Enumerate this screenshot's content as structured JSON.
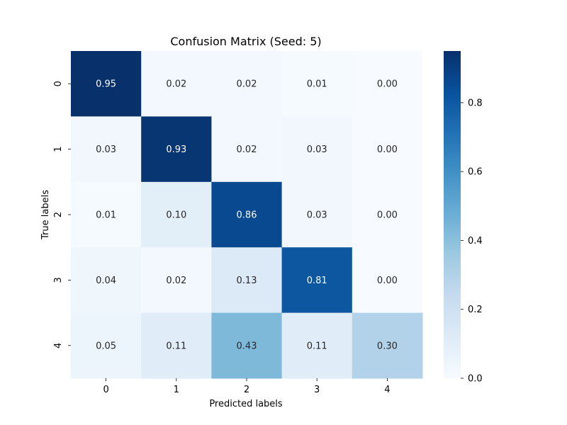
{
  "chart_data": {
    "type": "heatmap",
    "title": "Confusion Matrix (Seed: 5)",
    "xlabel": "Predicted labels",
    "ylabel": "True labels",
    "x_categories": [
      "0",
      "1",
      "2",
      "3",
      "4"
    ],
    "y_categories": [
      "0",
      "1",
      "2",
      "3",
      "4"
    ],
    "values": [
      [
        0.95,
        0.02,
        0.02,
        0.01,
        0.0
      ],
      [
        0.03,
        0.93,
        0.02,
        0.03,
        0.0
      ],
      [
        0.01,
        0.1,
        0.86,
        0.03,
        0.0
      ],
      [
        0.04,
        0.02,
        0.13,
        0.81,
        0.0
      ],
      [
        0.05,
        0.11,
        0.43,
        0.11,
        0.3
      ]
    ],
    "colormap": "Blues",
    "vmin": 0.0,
    "vmax": 0.95,
    "colorbar_ticks": [
      "0.0",
      "0.2",
      "0.4",
      "0.6",
      "0.8"
    ],
    "colorbar_tick_values": [
      0.0,
      0.2,
      0.4,
      0.6,
      0.8
    ],
    "colors": {
      "low": "#f7fbff",
      "high": "#08306b",
      "text_dark": "#262626",
      "text_light": "#ffffff"
    }
  }
}
